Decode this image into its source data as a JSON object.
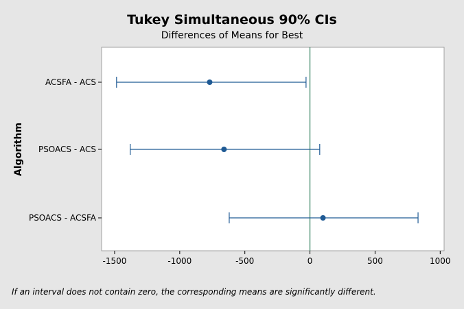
{
  "chart_data": {
    "type": "interval",
    "title": "Tukey Simultaneous 90% CIs",
    "subtitle": "Differences of Means for Best",
    "xlabel": "",
    "ylabel": "Algorithm",
    "xlim": [
      -1600,
      1030
    ],
    "x_ticks": [
      -1500,
      -1000,
      -500,
      0,
      500,
      1000
    ],
    "reference_line_x": 0,
    "reference_line_color": "#2e7d5b",
    "series_color": "#1f5a94",
    "grid": false,
    "intervals": [
      {
        "label": "ACSFA - ACS",
        "estimate": -770,
        "lower": -1485,
        "upper": -30
      },
      {
        "label": "PSOACS - ACS",
        "estimate": -660,
        "lower": -1380,
        "upper": 75
      },
      {
        "label": "PSOACS - ACSFA",
        "estimate": 100,
        "lower": -620,
        "upper": 830
      }
    ],
    "footnote": "If an interval does not contain zero, the corresponding means are significantly different."
  }
}
